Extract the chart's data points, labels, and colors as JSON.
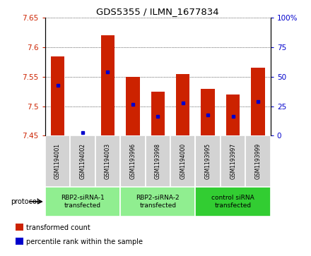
{
  "title": "GDS5355 / ILMN_1677834",
  "samples": [
    "GSM1194001",
    "GSM1194002",
    "GSM1194003",
    "GSM1193996",
    "GSM1193998",
    "GSM1194000",
    "GSM1193995",
    "GSM1193997",
    "GSM1193999"
  ],
  "bar_bottom": 7.45,
  "bar_tops": [
    7.585,
    7.45,
    7.62,
    7.55,
    7.525,
    7.555,
    7.53,
    7.52,
    7.565
  ],
  "blue_dot_y": [
    7.535,
    7.455,
    7.558,
    7.503,
    7.483,
    7.505,
    7.485,
    7.483,
    7.508
  ],
  "ylim": [
    7.45,
    7.65
  ],
  "y_ticks": [
    7.45,
    7.5,
    7.55,
    7.6,
    7.65
  ],
  "y2_ticks": [
    0,
    25,
    50,
    75,
    100
  ],
  "bar_color": "#cc2200",
  "dot_color": "#0000cc",
  "groups": [
    {
      "label": "RBP2-siRNA-1\ntransfected",
      "start": 0,
      "end": 3,
      "color": "#90ee90"
    },
    {
      "label": "RBP2-siRNA-2\ntransfected",
      "start": 3,
      "end": 6,
      "color": "#90ee90"
    },
    {
      "label": "control siRNA\ntransfected",
      "start": 6,
      "end": 9,
      "color": "#32cd32"
    }
  ],
  "protocol_label": "protocol",
  "legend_items": [
    {
      "color": "#cc2200",
      "label": "transformed count"
    },
    {
      "color": "#0000cc",
      "label": "percentile rank within the sample"
    }
  ],
  "bar_width": 0.55,
  "background_color": "#ffffff",
  "sample_box_color": "#d3d3d3",
  "separator_color": "#aaaaaa"
}
